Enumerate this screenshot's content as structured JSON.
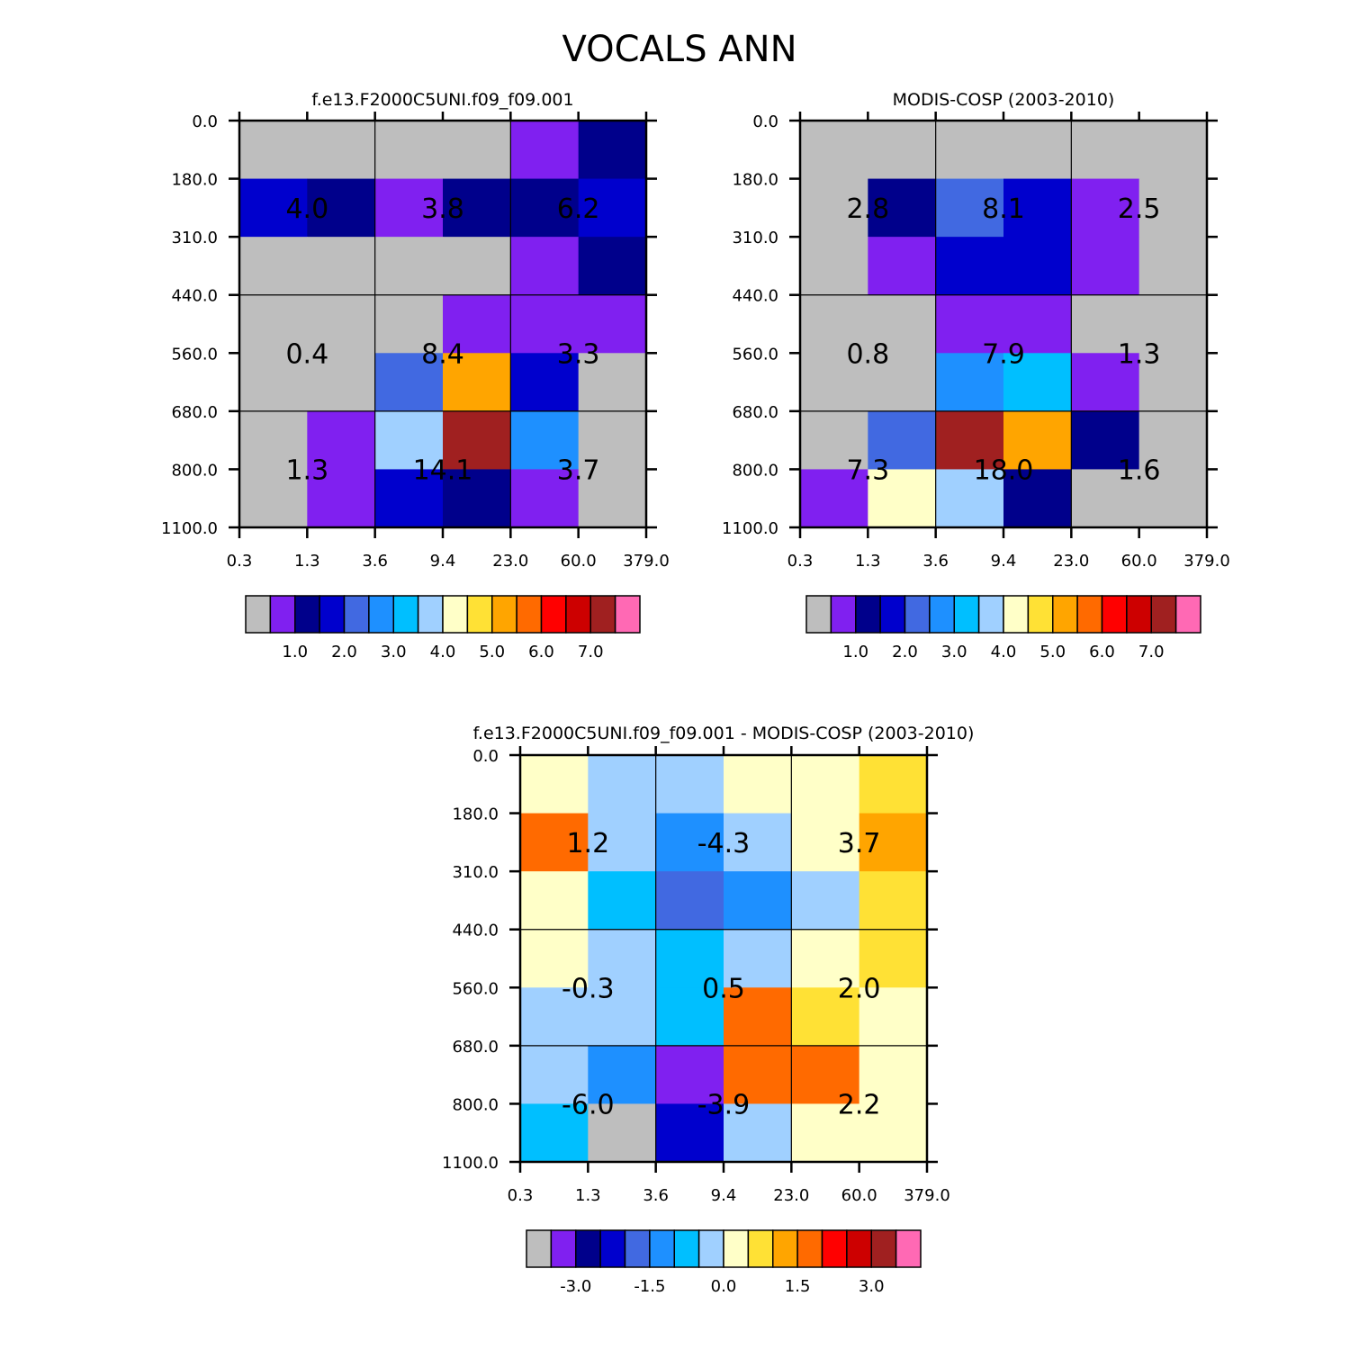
{
  "title": "VOCALS ANN",
  "colors": {
    "grid_line": "#000000",
    "background": "#ffffff"
  },
  "chart_data": [
    {
      "type": "heatmap",
      "title": "f.e13.F2000C5UNI.f09_f09.001",
      "x_ticks": [
        "0.3",
        "1.3",
        "3.6",
        "9.4",
        "23.0",
        "60.0",
        "379.0"
      ],
      "y_ticks": [
        "0.0",
        "180.0",
        "310.0",
        "440.0",
        "560.0",
        "680.0",
        "800.0",
        "1100.0"
      ],
      "cell_colors": [
        [
          "#bebebe",
          "#bebebe",
          "#bebebe",
          "#bebebe",
          "#8020f0",
          "#00008b"
        ],
        [
          "#0000cd",
          "#00008b",
          "#8020f0",
          "#00008b",
          "#00008b",
          "#0000cd"
        ],
        [
          "#bebebe",
          "#bebebe",
          "#bebebe",
          "#bebebe",
          "#8020f0",
          "#00008b"
        ],
        [
          "#bebebe",
          "#bebebe",
          "#bebebe",
          "#8020f0",
          "#8020f0",
          "#8020f0"
        ],
        [
          "#bebebe",
          "#bebebe",
          "#4169e1",
          "#ffa500",
          "#0000cd",
          "#bebebe"
        ],
        [
          "#bebebe",
          "#8020f0",
          "#a0d0ff",
          "#a02020",
          "#1e90ff",
          "#bebebe"
        ],
        [
          "#bebebe",
          "#8020f0",
          "#0000cd",
          "#00008b",
          "#8020f0",
          "#bebebe"
        ]
      ],
      "annotations": [
        [
          "4.0",
          "3.8",
          "6.2"
        ],
        [
          "0.4",
          "8.4",
          "3.3"
        ],
        [
          "1.3",
          "14.1",
          "3.7"
        ]
      ],
      "colorbar": {
        "colors": [
          "#bebebe",
          "#8020f0",
          "#00008b",
          "#0000cd",
          "#4169e1",
          "#1e90ff",
          "#00bfff",
          "#a0d0ff",
          "#ffffc8",
          "#ffe135",
          "#ffa500",
          "#ff6a00",
          "#ff0000",
          "#cd0000",
          "#a02020",
          "#ff69b4"
        ],
        "labels": [
          "1.0",
          "2.0",
          "3.0",
          "4.0",
          "5.0",
          "6.0",
          "7.0"
        ],
        "label_boundaries": [
          2,
          4,
          6,
          8,
          10,
          12,
          14
        ]
      }
    },
    {
      "type": "heatmap",
      "title": "MODIS-COSP (2003-2010)",
      "x_ticks": [
        "0.3",
        "1.3",
        "3.6",
        "9.4",
        "23.0",
        "60.0",
        "379.0"
      ],
      "y_ticks": [
        "0.0",
        "180.0",
        "310.0",
        "440.0",
        "560.0",
        "680.0",
        "800.0",
        "1100.0"
      ],
      "cell_colors": [
        [
          "#bebebe",
          "#bebebe",
          "#bebebe",
          "#bebebe",
          "#bebebe",
          "#bebebe"
        ],
        [
          "#bebebe",
          "#00008b",
          "#4169e1",
          "#0000cd",
          "#8020f0",
          "#bebebe"
        ],
        [
          "#bebebe",
          "#8020f0",
          "#0000cd",
          "#0000cd",
          "#8020f0",
          "#bebebe"
        ],
        [
          "#bebebe",
          "#bebebe",
          "#8020f0",
          "#8020f0",
          "#bebebe",
          "#bebebe"
        ],
        [
          "#bebebe",
          "#bebebe",
          "#1e90ff",
          "#00bfff",
          "#8020f0",
          "#bebebe"
        ],
        [
          "#bebebe",
          "#4169e1",
          "#a02020",
          "#ffa500",
          "#00008b",
          "#bebebe"
        ],
        [
          "#8020f0",
          "#ffffc8",
          "#a0d0ff",
          "#00008b",
          "#bebebe",
          "#bebebe"
        ]
      ],
      "annotations": [
        [
          "2.8",
          "8.1",
          "2.5"
        ],
        [
          "0.8",
          "7.9",
          "1.3"
        ],
        [
          "7.3",
          "18.0",
          "1.6"
        ]
      ],
      "colorbar": {
        "colors": [
          "#bebebe",
          "#8020f0",
          "#00008b",
          "#0000cd",
          "#4169e1",
          "#1e90ff",
          "#00bfff",
          "#a0d0ff",
          "#ffffc8",
          "#ffe135",
          "#ffa500",
          "#ff6a00",
          "#ff0000",
          "#cd0000",
          "#a02020",
          "#ff69b4"
        ],
        "labels": [
          "1.0",
          "2.0",
          "3.0",
          "4.0",
          "5.0",
          "6.0",
          "7.0"
        ],
        "label_boundaries": [
          2,
          4,
          6,
          8,
          10,
          12,
          14
        ]
      }
    },
    {
      "type": "heatmap",
      "title": "f.e13.F2000C5UNI.f09_f09.001 - MODIS-COSP (2003-2010)",
      "x_ticks": [
        "0.3",
        "1.3",
        "3.6",
        "9.4",
        "23.0",
        "60.0",
        "379.0"
      ],
      "y_ticks": [
        "0.0",
        "180.0",
        "310.0",
        "440.0",
        "560.0",
        "680.0",
        "800.0",
        "1100.0"
      ],
      "cell_colors": [
        [
          "#ffffc8",
          "#a0d0ff",
          "#a0d0ff",
          "#ffffc8",
          "#ffffc8",
          "#ffe135"
        ],
        [
          "#ff6a00",
          "#a0d0ff",
          "#1e90ff",
          "#a0d0ff",
          "#ffffc8",
          "#ffa500"
        ],
        [
          "#ffffc8",
          "#00bfff",
          "#4169e1",
          "#1e90ff",
          "#a0d0ff",
          "#ffe135"
        ],
        [
          "#ffffc8",
          "#a0d0ff",
          "#00bfff",
          "#a0d0ff",
          "#ffffc8",
          "#ffe135"
        ],
        [
          "#a0d0ff",
          "#a0d0ff",
          "#00bfff",
          "#ff6a00",
          "#ffe135",
          "#ffffc8"
        ],
        [
          "#a0d0ff",
          "#1e90ff",
          "#8020f0",
          "#ff6a00",
          "#ff6a00",
          "#ffffc8"
        ],
        [
          "#00bfff",
          "#bebebe",
          "#0000cd",
          "#a0d0ff",
          "#ffffc8",
          "#ffffc8"
        ]
      ],
      "annotations": [
        [
          "1.2",
          "-4.3",
          "3.7"
        ],
        [
          "-0.3",
          "0.5",
          "2.0"
        ],
        [
          "-6.0",
          "-3.9",
          "2.2"
        ]
      ],
      "colorbar": {
        "colors": [
          "#bebebe",
          "#8020f0",
          "#00008b",
          "#0000cd",
          "#4169e1",
          "#1e90ff",
          "#00bfff",
          "#a0d0ff",
          "#ffffc8",
          "#ffe135",
          "#ffa500",
          "#ff6a00",
          "#ff0000",
          "#cd0000",
          "#a02020",
          "#ff69b4"
        ],
        "labels": [
          "-3.0",
          "-1.5",
          "0.0",
          "1.5",
          "3.0"
        ],
        "label_boundaries": [
          2,
          5,
          8,
          11,
          14
        ]
      }
    }
  ]
}
